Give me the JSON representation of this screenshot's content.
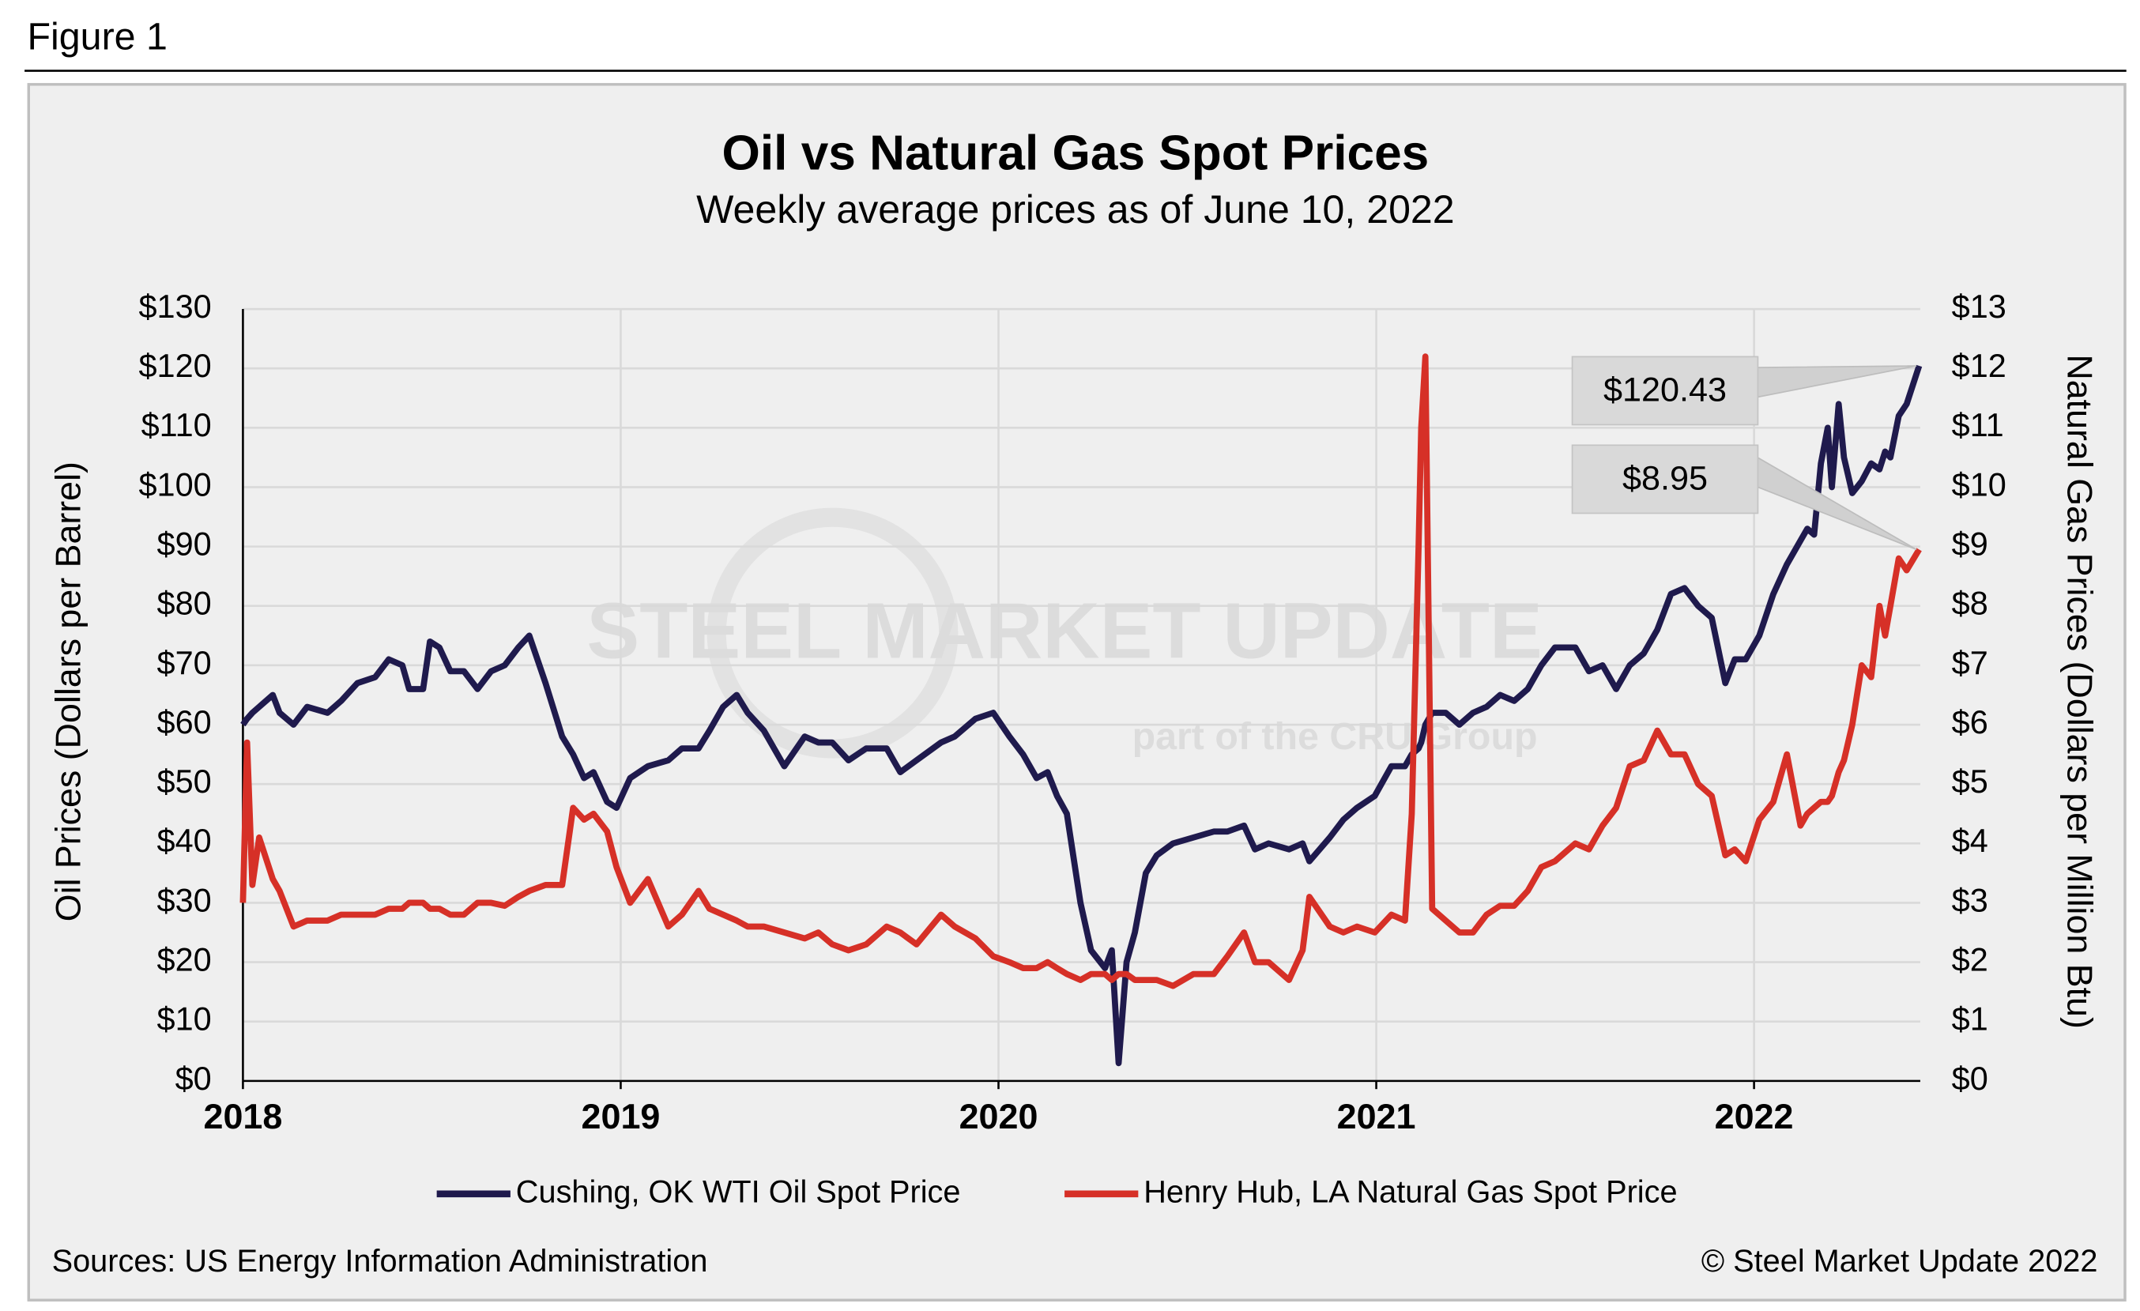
{
  "figure_label": "Figure 1",
  "chart_data": {
    "type": "line",
    "title": "Oil vs Natural Gas Spot Prices",
    "subtitle": "Weekly average prices as of June 10, 2022",
    "y_label": "Oil Prices (Dollars per Barrel)",
    "y2_label": "Natural Gas Prices (Dollars per Million Btu)",
    "xlim": [
      2018,
      2022.44
    ],
    "xticks": [
      2018,
      2019,
      2020,
      2021,
      2022
    ],
    "ylim": [
      0,
      130
    ],
    "yticks": [
      {
        "value": 0,
        "label": "$0"
      },
      {
        "value": 10,
        "label": "$10"
      },
      {
        "value": 20,
        "label": "$20"
      },
      {
        "value": 30,
        "label": "$30"
      },
      {
        "value": 40,
        "label": "$40"
      },
      {
        "value": 50,
        "label": "$50"
      },
      {
        "value": 60,
        "label": "$60"
      },
      {
        "value": 70,
        "label": "$70"
      },
      {
        "value": 80,
        "label": "$80"
      },
      {
        "value": 90,
        "label": "$90"
      },
      {
        "value": 100,
        "label": "$100"
      },
      {
        "value": 110,
        "label": "$110"
      },
      {
        "value": 120,
        "label": "$120"
      },
      {
        "value": 130,
        "label": "$130"
      }
    ],
    "y2lim": [
      0,
      13
    ],
    "y2ticks": [
      {
        "value": 0,
        "label": "$0"
      },
      {
        "value": 1,
        "label": "$1"
      },
      {
        "value": 2,
        "label": "$2"
      },
      {
        "value": 3,
        "label": "$3"
      },
      {
        "value": 4,
        "label": "$4"
      },
      {
        "value": 5,
        "label": "$5"
      },
      {
        "value": 6,
        "label": "$6"
      },
      {
        "value": 7,
        "label": "$7"
      },
      {
        "value": 8,
        "label": "$8"
      },
      {
        "value": 9,
        "label": "$9"
      },
      {
        "value": 10,
        "label": "$10"
      },
      {
        "value": 11,
        "label": "$11"
      },
      {
        "value": 12,
        "label": "$12"
      },
      {
        "value": 13,
        "label": "$13"
      }
    ],
    "grid": true,
    "legend": "bottom",
    "x": [
      2018.0,
      2018.011,
      2018.025,
      2018.043,
      2018.079,
      2018.097,
      2018.134,
      2018.17,
      2018.224,
      2018.26,
      2018.303,
      2018.35,
      2018.386,
      2018.422,
      2018.44,
      2018.477,
      2018.495,
      2018.52,
      2018.549,
      2018.585,
      2018.621,
      2018.657,
      2018.693,
      2018.729,
      2018.758,
      2018.801,
      2018.845,
      2018.874,
      2018.903,
      2018.928,
      2018.964,
      2018.989,
      2019.025,
      2019.072,
      2019.126,
      2019.162,
      2019.206,
      2019.235,
      2019.271,
      2019.307,
      2019.336,
      2019.379,
      2019.433,
      2019.487,
      2019.523,
      2019.56,
      2019.603,
      2019.65,
      2019.704,
      2019.74,
      2019.783,
      2019.848,
      2019.884,
      2019.939,
      2019.986,
      2020.029,
      2020.065,
      2020.101,
      2020.13,
      2020.155,
      2020.181,
      2020.217,
      2020.245,
      2020.282,
      2020.3,
      2020.318,
      2020.339,
      2020.361,
      2020.39,
      2020.419,
      2020.462,
      2020.516,
      2020.57,
      2020.606,
      2020.65,
      2020.679,
      2020.715,
      2020.769,
      2020.805,
      2020.823,
      2020.877,
      2020.913,
      2020.949,
      2020.996,
      2021.04,
      2021.076,
      2021.094,
      2021.112,
      2021.119,
      2021.13,
      2021.148,
      2021.184,
      2021.22,
      2021.256,
      2021.292,
      2021.328,
      2021.365,
      2021.401,
      2021.437,
      2021.473,
      2021.527,
      2021.563,
      2021.599,
      2021.635,
      2021.671,
      2021.708,
      2021.744,
      2021.78,
      2021.816,
      2021.852,
      2021.888,
      2021.924,
      2021.949,
      2021.978,
      2022.014,
      2022.051,
      2022.087,
      2022.123,
      2022.141,
      2022.159,
      2022.177,
      2022.195,
      2022.206,
      2022.224,
      2022.238,
      2022.26,
      2022.285,
      2022.31,
      2022.332,
      2022.347,
      2022.361,
      2022.383,
      2022.404,
      2022.437
    ],
    "series": [
      {
        "name": "Cushing, OK WTI Oil Spot Price",
        "color": "#1f1a4d",
        "values": [
          60,
          61,
          62,
          63,
          65,
          62,
          60,
          63,
          62,
          64,
          67,
          68,
          71,
          70,
          66,
          66,
          74,
          73,
          69,
          69,
          66,
          69,
          70,
          73,
          75,
          67,
          58,
          55,
          51,
          52,
          47,
          46,
          51,
          53,
          54,
          56,
          56,
          59,
          63,
          65,
          62,
          59,
          53,
          58,
          57,
          57,
          54,
          56,
          56,
          52,
          54,
          57,
          58,
          61,
          62,
          58,
          55,
          51,
          52,
          48,
          45,
          30,
          22,
          19,
          22,
          3,
          20,
          25,
          35,
          38,
          40,
          41,
          42,
          42,
          43,
          39,
          40,
          39,
          40,
          37,
          41,
          44,
          46,
          48,
          53,
          53,
          55,
          56,
          57,
          60,
          62,
          62,
          60,
          62,
          63,
          65,
          64,
          66,
          70,
          73,
          73,
          69,
          70,
          66,
          70,
          72,
          76,
          82,
          83,
          80,
          78,
          67,
          71,
          71,
          75,
          82,
          87,
          91,
          93,
          92,
          104,
          110,
          100,
          114,
          105,
          99,
          101,
          104,
          103,
          106,
          105,
          112,
          114,
          120.43
        ]
      },
      {
        "name": "Henry Hub, LA Natural Gas Spot Price",
        "color": "#d63027",
        "axis": "y2",
        "values": [
          3.0,
          5.7,
          3.3,
          4.1,
          3.4,
          3.2,
          2.6,
          2.7,
          2.7,
          2.8,
          2.8,
          2.8,
          2.9,
          2.9,
          3.0,
          3.0,
          2.9,
          2.9,
          2.8,
          2.8,
          3.0,
          3.0,
          2.95,
          3.1,
          3.2,
          3.3,
          3.3,
          4.6,
          4.4,
          4.5,
          4.2,
          3.6,
          3.0,
          3.4,
          2.6,
          2.8,
          3.2,
          2.9,
          2.8,
          2.7,
          2.6,
          2.6,
          2.5,
          2.4,
          2.5,
          2.3,
          2.2,
          2.3,
          2.6,
          2.5,
          2.3,
          2.8,
          2.6,
          2.4,
          2.1,
          2.0,
          1.9,
          1.9,
          2.0,
          1.9,
          1.8,
          1.7,
          1.8,
          1.8,
          1.7,
          1.8,
          1.8,
          1.7,
          1.7,
          1.7,
          1.6,
          1.8,
          1.8,
          2.1,
          2.5,
          2.0,
          2.0,
          1.7,
          2.2,
          3.1,
          2.6,
          2.5,
          2.6,
          2.5,
          2.8,
          2.7,
          4.5,
          9.0,
          11.0,
          12.2,
          2.9,
          2.7,
          2.5,
          2.5,
          2.8,
          2.95,
          2.95,
          3.2,
          3.6,
          3.7,
          4.0,
          3.9,
          4.3,
          4.6,
          5.3,
          5.4,
          5.9,
          5.5,
          5.5,
          5.0,
          4.8,
          3.8,
          3.9,
          3.7,
          4.4,
          4.7,
          5.5,
          4.3,
          4.5,
          4.6,
          4.7,
          4.7,
          4.8,
          5.2,
          5.4,
          6.0,
          7.0,
          6.8,
          8.0,
          7.5,
          8.0,
          8.8,
          8.6,
          8.95
        ]
      }
    ],
    "annotations": [
      "$120.43",
      "$8.95"
    ],
    "watermark": [
      "STEEL MARKET UPDATE",
      "part of the CRU Group"
    ],
    "source": "Sources: US Energy Information Administration",
    "copyright": "© Steel Market Update 2022"
  }
}
